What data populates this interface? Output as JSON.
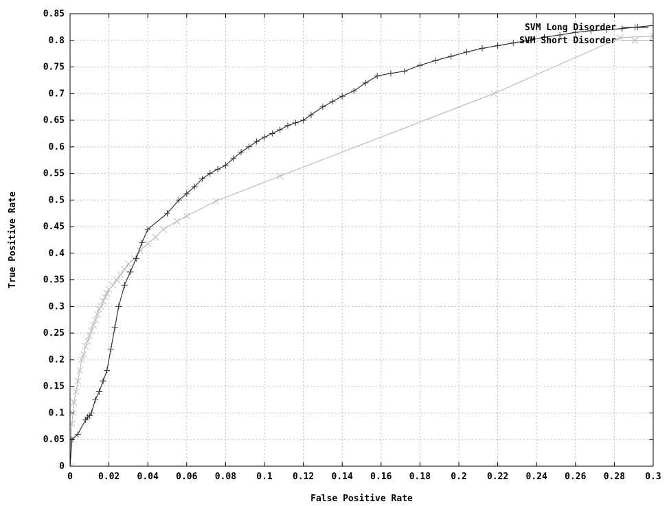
{
  "chart_data": {
    "type": "line",
    "title": "",
    "xlabel": "False Positive Rate",
    "ylabel": "True Positive Rate",
    "xlim": [
      0,
      0.3
    ],
    "ylim": [
      0,
      0.85
    ],
    "grid": true,
    "legend_position": "top-right",
    "x_ticks": [
      {
        "value": 0,
        "label": "0"
      },
      {
        "value": 0.02,
        "label": "0.02"
      },
      {
        "value": 0.04,
        "label": "0.04"
      },
      {
        "value": 0.06,
        "label": "0.06"
      },
      {
        "value": 0.08,
        "label": "0.08"
      },
      {
        "value": 0.1,
        "label": "0.1"
      },
      {
        "value": 0.12,
        "label": "0.12"
      },
      {
        "value": 0.14,
        "label": "0.14"
      },
      {
        "value": 0.16,
        "label": "0.16"
      },
      {
        "value": 0.18,
        "label": "0.18"
      },
      {
        "value": 0.2,
        "label": "0.2"
      },
      {
        "value": 0.22,
        "label": "0.22"
      },
      {
        "value": 0.24,
        "label": "0.24"
      },
      {
        "value": 0.26,
        "label": "0.26"
      },
      {
        "value": 0.28,
        "label": "0.28"
      },
      {
        "value": 0.3,
        "label": "0.3"
      }
    ],
    "y_ticks": [
      {
        "value": 0,
        "label": "0"
      },
      {
        "value": 0.05,
        "label": "0.05"
      },
      {
        "value": 0.1,
        "label": "0.1"
      },
      {
        "value": 0.15,
        "label": "0.15"
      },
      {
        "value": 0.2,
        "label": "0.2"
      },
      {
        "value": 0.25,
        "label": "0.25"
      },
      {
        "value": 0.3,
        "label": "0.3"
      },
      {
        "value": 0.35,
        "label": "0.35"
      },
      {
        "value": 0.4,
        "label": "0.4"
      },
      {
        "value": 0.45,
        "label": "0.45"
      },
      {
        "value": 0.5,
        "label": "0.5"
      },
      {
        "value": 0.55,
        "label": "0.55"
      },
      {
        "value": 0.6,
        "label": "0.6"
      },
      {
        "value": 0.65,
        "label": "0.65"
      },
      {
        "value": 0.7,
        "label": "0.7"
      },
      {
        "value": 0.75,
        "label": "0.75"
      },
      {
        "value": 0.8,
        "label": "0.8"
      },
      {
        "value": 0.85,
        "label": "0.85"
      }
    ],
    "series": [
      {
        "name": "SVM Long Disorder",
        "color": "#333333",
        "marker": "plus",
        "points": [
          [
            0,
            0
          ],
          [
            0.001,
            0.05
          ],
          [
            0.004,
            0.06
          ],
          [
            0.008,
            0.087
          ],
          [
            0.009,
            0.092
          ],
          [
            0.01,
            0.095
          ],
          [
            0.011,
            0.1
          ],
          [
            0.013,
            0.125
          ],
          [
            0.015,
            0.14
          ],
          [
            0.017,
            0.16
          ],
          [
            0.019,
            0.18
          ],
          [
            0.021,
            0.22
          ],
          [
            0.023,
            0.26
          ],
          [
            0.025,
            0.3
          ],
          [
            0.028,
            0.34
          ],
          [
            0.031,
            0.365
          ],
          [
            0.034,
            0.39
          ],
          [
            0.037,
            0.42
          ],
          [
            0.04,
            0.445
          ],
          [
            0.05,
            0.475
          ],
          [
            0.056,
            0.5
          ],
          [
            0.06,
            0.512
          ],
          [
            0.064,
            0.525
          ],
          [
            0.068,
            0.54
          ],
          [
            0.072,
            0.55
          ],
          [
            0.076,
            0.558
          ],
          [
            0.08,
            0.565
          ],
          [
            0.084,
            0.578
          ],
          [
            0.088,
            0.59
          ],
          [
            0.092,
            0.6
          ],
          [
            0.096,
            0.61
          ],
          [
            0.1,
            0.618
          ],
          [
            0.104,
            0.625
          ],
          [
            0.108,
            0.632
          ],
          [
            0.112,
            0.64
          ],
          [
            0.116,
            0.645
          ],
          [
            0.12,
            0.65
          ],
          [
            0.124,
            0.66
          ],
          [
            0.13,
            0.675
          ],
          [
            0.135,
            0.685
          ],
          [
            0.14,
            0.695
          ],
          [
            0.146,
            0.705
          ],
          [
            0.152,
            0.72
          ],
          [
            0.158,
            0.733
          ],
          [
            0.165,
            0.738
          ],
          [
            0.172,
            0.742
          ],
          [
            0.18,
            0.753
          ],
          [
            0.188,
            0.762
          ],
          [
            0.196,
            0.77
          ],
          [
            0.204,
            0.778
          ],
          [
            0.212,
            0.785
          ],
          [
            0.22,
            0.79
          ],
          [
            0.228,
            0.795
          ],
          [
            0.236,
            0.8
          ],
          [
            0.244,
            0.806
          ],
          [
            0.252,
            0.81
          ],
          [
            0.26,
            0.815
          ],
          [
            0.268,
            0.818
          ],
          [
            0.276,
            0.82
          ],
          [
            0.284,
            0.822
          ],
          [
            0.292,
            0.825
          ],
          [
            0.3,
            0.828
          ]
        ]
      },
      {
        "name": "SVM Short Disorder",
        "color": "#bbbbbb",
        "marker": "cross",
        "points": [
          [
            0,
            0
          ],
          [
            0.0005,
            0.05
          ],
          [
            0.001,
            0.08
          ],
          [
            0.0015,
            0.1
          ],
          [
            0.002,
            0.12
          ],
          [
            0.003,
            0.14
          ],
          [
            0.004,
            0.16
          ],
          [
            0.005,
            0.18
          ],
          [
            0.006,
            0.2
          ],
          [
            0.007,
            0.21
          ],
          [
            0.008,
            0.225
          ],
          [
            0.009,
            0.235
          ],
          [
            0.01,
            0.245
          ],
          [
            0.011,
            0.255
          ],
          [
            0.012,
            0.265
          ],
          [
            0.013,
            0.275
          ],
          [
            0.014,
            0.285
          ],
          [
            0.015,
            0.295
          ],
          [
            0.016,
            0.3
          ],
          [
            0.017,
            0.31
          ],
          [
            0.018,
            0.318
          ],
          [
            0.019,
            0.325
          ],
          [
            0.02,
            0.332
          ],
          [
            0.022,
            0.34
          ],
          [
            0.024,
            0.35
          ],
          [
            0.026,
            0.36
          ],
          [
            0.028,
            0.37
          ],
          [
            0.03,
            0.38
          ],
          [
            0.033,
            0.39
          ],
          [
            0.036,
            0.405
          ],
          [
            0.04,
            0.418
          ],
          [
            0.044,
            0.43
          ],
          [
            0.048,
            0.445
          ],
          [
            0.055,
            0.46
          ],
          [
            0.06,
            0.47
          ],
          [
            0.075,
            0.498
          ],
          [
            0.108,
            0.545
          ],
          [
            0.218,
            0.7
          ],
          [
            0.283,
            0.805
          ],
          [
            0.3,
            0.808
          ]
        ]
      }
    ]
  }
}
